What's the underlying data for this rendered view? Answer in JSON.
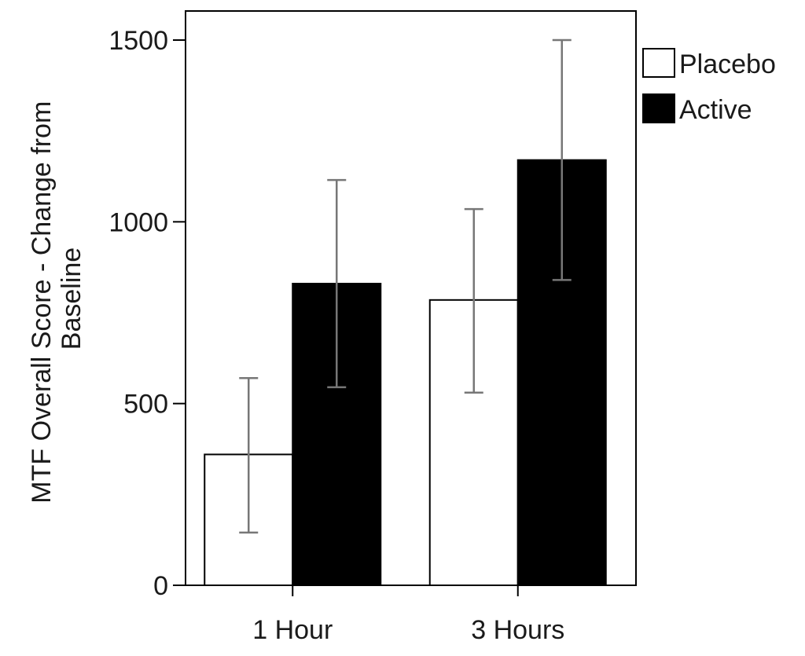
{
  "chart_data": {
    "type": "bar",
    "categories": [
      "1 Hour",
      "3 Hours"
    ],
    "series": [
      {
        "name": "Placebo",
        "values": [
          360,
          785
        ],
        "error_low": [
          145,
          530
        ],
        "error_high": [
          570,
          1035
        ],
        "color": "#ffffff"
      },
      {
        "name": "Active",
        "values": [
          830,
          1170
        ],
        "error_low": [
          545,
          840
        ],
        "error_high": [
          1115,
          1500
        ],
        "color": "#000000"
      }
    ],
    "ylabel_lines": [
      "MTF Overall Score - Change from",
      "Baseline"
    ],
    "ylim": [
      0,
      1580
    ],
    "yticks": [
      0,
      500,
      1000,
      1500
    ],
    "ytick_labels": [
      "0",
      "500",
      "1000",
      "1500"
    ],
    "legend_position": "top-right, outside plot",
    "grid": false,
    "error_bar_color": "#777777"
  }
}
